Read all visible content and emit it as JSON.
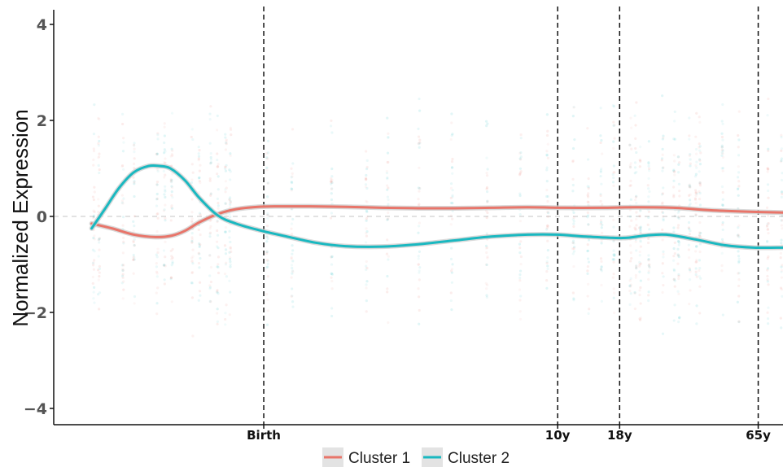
{
  "chart_data": {
    "type": "line",
    "xlabel": "",
    "ylabel": "Normalized Expression",
    "xlim": [
      0,
      100
    ],
    "ylim": [
      -4.3,
      4.3
    ],
    "yticks": [
      {
        "value": 4,
        "label": "4"
      },
      {
        "value": 2,
        "label": "2"
      },
      {
        "value": 0,
        "label": "0"
      },
      {
        "value": -2,
        "label": "−2"
      },
      {
        "value": -4,
        "label": "−4"
      }
    ],
    "reference_lines": [
      {
        "x": 28.8,
        "label": "Birth"
      },
      {
        "x": 69.1,
        "label": "10y"
      },
      {
        "x": 77.6,
        "label": "18y"
      },
      {
        "x": 96.6,
        "label": "65y"
      }
    ],
    "hline": {
      "y": 0,
      "style": "dashed"
    },
    "legend_position": "bottom",
    "series": [
      {
        "name": "Cluster 1",
        "color": "#e8756a",
        "x": [
          5.2,
          8,
          11,
          14,
          16.2,
          18,
          20,
          22.5,
          25,
          28,
          31,
          35,
          40,
          45,
          50,
          55,
          60,
          65,
          70,
          75,
          80,
          85,
          90,
          95,
          100
        ],
        "y": [
          -0.15,
          -0.25,
          -0.38,
          -0.43,
          -0.4,
          -0.3,
          -0.12,
          0.05,
          0.15,
          0.2,
          0.21,
          0.21,
          0.2,
          0.18,
          0.17,
          0.17,
          0.18,
          0.19,
          0.18,
          0.18,
          0.19,
          0.18,
          0.13,
          0.1,
          0.08
        ]
      },
      {
        "name": "Cluster 2",
        "color": "#1ab8c0",
        "x": [
          5.2,
          7,
          9,
          11,
          13,
          14.5,
          16,
          18,
          20,
          22.5,
          25,
          28,
          32,
          36,
          40,
          45,
          50,
          55,
          60,
          65,
          69,
          73,
          78,
          81,
          84,
          88,
          92,
          96,
          100
        ],
        "y": [
          -0.25,
          0.15,
          0.6,
          0.92,
          1.05,
          1.05,
          1.0,
          0.75,
          0.38,
          0.02,
          -0.15,
          -0.28,
          -0.42,
          -0.55,
          -0.62,
          -0.63,
          -0.58,
          -0.5,
          -0.42,
          -0.38,
          -0.38,
          -0.42,
          -0.45,
          -0.4,
          -0.38,
          -0.48,
          -0.6,
          -0.65,
          -0.65
        ]
      }
    ]
  }
}
